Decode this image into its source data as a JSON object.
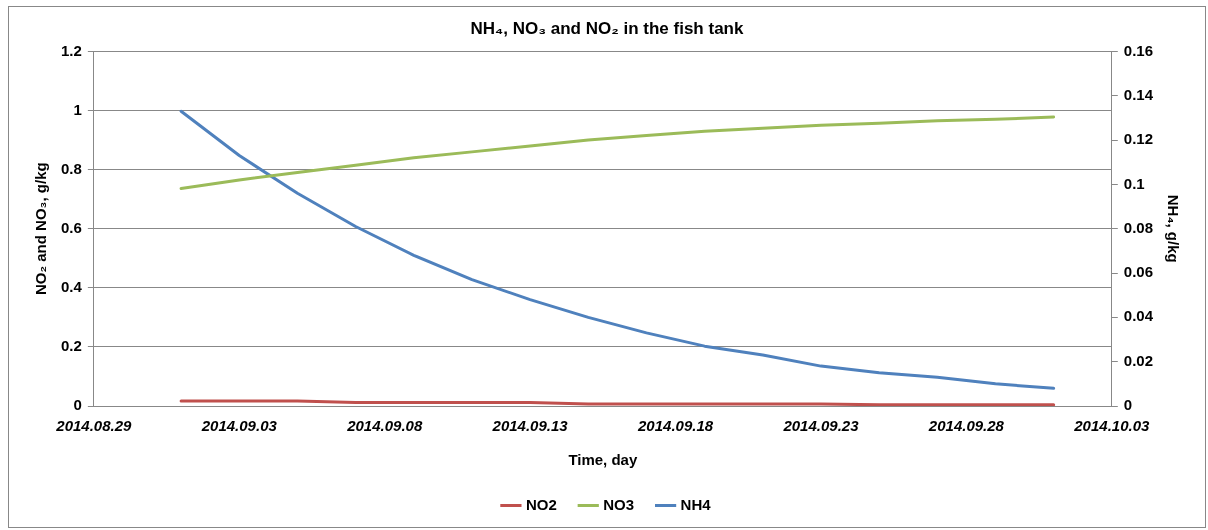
{
  "chart_data": {
    "type": "line",
    "title": "NH₄, NO₃ and NO₂ in the fish tank",
    "xlabel": "Time, day",
    "ylabel": "NO₂ and NO₃, g/kg",
    "y2label": "NH₄, g/kg",
    "x": [
      "2014-09-01",
      "2014-09-03",
      "2014-09-05",
      "2014-09-07",
      "2014-09-09",
      "2014-09-11",
      "2014-09-13",
      "2014-09-15",
      "2014-09-17",
      "2014-09-19",
      "2014-09-21",
      "2014-09-23",
      "2014-09-25",
      "2014-09-27",
      "2014-09-29",
      "2014-10-01"
    ],
    "series": [
      {
        "name": "NO2",
        "color": "#c0504d",
        "values": [
          0.017,
          0.017,
          0.017,
          0.012,
          0.012,
          0.012,
          0.012,
          0.007,
          0.007,
          0.007,
          0.007,
          0.007,
          0.004,
          0.004,
          0.004,
          0.004
        ]
      },
      {
        "name": "NO3",
        "color": "#9bbb59",
        "values": [
          0.736,
          0.765,
          0.79,
          0.815,
          0.84,
          0.86,
          0.88,
          0.9,
          0.915,
          0.93,
          0.94,
          0.95,
          0.957,
          0.965,
          0.97,
          0.978
        ]
      },
      {
        "name": "NH4",
        "color": "#4f81bd",
        "axis": "y2",
        "values": [
          0.133,
          0.113,
          0.096,
          0.081,
          0.068,
          0.057,
          0.048,
          0.04,
          0.033,
          0.027,
          0.023,
          0.018,
          0.015,
          0.013,
          0.01,
          0.008
        ]
      }
    ],
    "xlim": [
      "2014-08-29",
      "2014-10-03"
    ],
    "xticks": [
      {
        "value": "2014-08-29",
        "label": "2014.08.29"
      },
      {
        "value": "2014-09-03",
        "label": "2014.09.03"
      },
      {
        "value": "2014-09-08",
        "label": "2014.09.08"
      },
      {
        "value": "2014-09-13",
        "label": "2014.09.13"
      },
      {
        "value": "2014-09-18",
        "label": "2014.09.18"
      },
      {
        "value": "2014-09-23",
        "label": "2014.09.23"
      },
      {
        "value": "2014-09-28",
        "label": "2014.09.28"
      },
      {
        "value": "2014-10-03",
        "label": "2014.10.03"
      }
    ],
    "ylim": [
      0,
      1.2
    ],
    "yticks": [
      0,
      0.2,
      0.4,
      0.6,
      0.8,
      1,
      1.2
    ],
    "y2lim": [
      0,
      0.16
    ],
    "y2ticks": [
      0,
      0.02,
      0.04,
      0.06,
      0.08,
      0.1,
      0.12,
      0.14,
      0.16
    ],
    "grid": "y",
    "legend": "bottom",
    "marker": "none"
  }
}
